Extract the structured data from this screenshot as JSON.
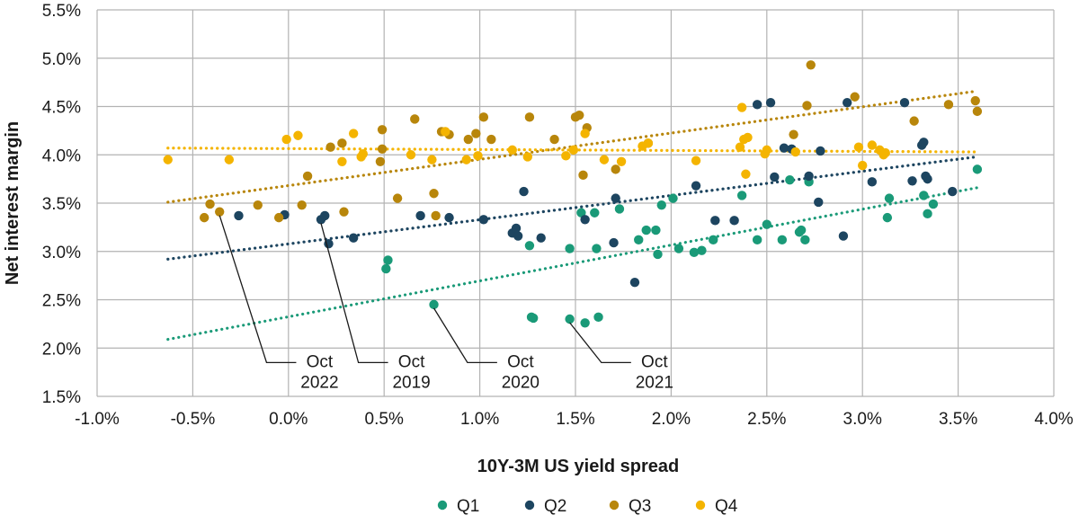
{
  "chart_data": {
    "type": "scatter",
    "xlabel": "10Y-3M US yield spread",
    "ylabel": "Net interest margin",
    "xlim": [
      -0.01,
      0.04
    ],
    "ylim": [
      0.015,
      0.055
    ],
    "x_ticks": [
      "-1.0%",
      "-0.5%",
      "0.0%",
      "0.5%",
      "1.0%",
      "1.5%",
      "2.0%",
      "2.5%",
      "3.0%",
      "3.5%",
      "4.0%"
    ],
    "y_ticks": [
      "1.5%",
      "2.0%",
      "2.5%",
      "3.0%",
      "3.5%",
      "4.0%",
      "4.5%",
      "5.0%",
      "5.5%"
    ],
    "grid": true,
    "legend_position": "bottom",
    "colors": {
      "Q1": "#1a9a78",
      "Q2": "#1d4560",
      "Q3": "#b8860b",
      "Q4": "#f4b400"
    },
    "series": [
      {
        "name": "Q1",
        "points": [
          [
            0.0051,
            0.0282
          ],
          [
            0.0052,
            0.0291
          ],
          [
            0.0076,
            0.0245
          ],
          [
            0.0126,
            0.0306
          ],
          [
            0.0127,
            0.0232
          ],
          [
            0.0128,
            0.0231
          ],
          [
            0.0147,
            0.0303
          ],
          [
            0.0147,
            0.023
          ],
          [
            0.0153,
            0.034
          ],
          [
            0.0155,
            0.0226
          ],
          [
            0.016,
            0.034
          ],
          [
            0.0161,
            0.0303
          ],
          [
            0.0162,
            0.0232
          ],
          [
            0.0173,
            0.0344
          ],
          [
            0.0183,
            0.0312
          ],
          [
            0.0187,
            0.0322
          ],
          [
            0.0192,
            0.0322
          ],
          [
            0.0193,
            0.0297
          ],
          [
            0.0195,
            0.0348
          ],
          [
            0.0201,
            0.0355
          ],
          [
            0.0204,
            0.0303
          ],
          [
            0.0212,
            0.0299
          ],
          [
            0.0216,
            0.0301
          ],
          [
            0.0222,
            0.0312
          ],
          [
            0.0237,
            0.0358
          ],
          [
            0.0245,
            0.0312
          ],
          [
            0.025,
            0.0328
          ],
          [
            0.0258,
            0.0312
          ],
          [
            0.0262,
            0.0374
          ],
          [
            0.0267,
            0.032
          ],
          [
            0.0268,
            0.0322
          ],
          [
            0.027,
            0.0312
          ],
          [
            0.0272,
            0.0372
          ],
          [
            0.0313,
            0.0335
          ],
          [
            0.0314,
            0.0355
          ],
          [
            0.0332,
            0.0358
          ],
          [
            0.0334,
            0.0339
          ],
          [
            0.0337,
            0.0349
          ],
          [
            0.036,
            0.0385
          ]
        ],
        "trend": [
          [
            -0.0063,
            0.0209
          ],
          [
            0.036,
            0.0366
          ]
        ]
      },
      {
        "name": "Q2",
        "points": [
          [
            -0.0026,
            0.0337
          ],
          [
            -0.0002,
            0.0338
          ],
          [
            0.0017,
            0.0333
          ],
          [
            0.0019,
            0.0337
          ],
          [
            0.0021,
            0.0308
          ],
          [
            0.0034,
            0.0314
          ],
          [
            0.0069,
            0.0337
          ],
          [
            0.0084,
            0.0335
          ],
          [
            0.0102,
            0.0333
          ],
          [
            0.0117,
            0.0319
          ],
          [
            0.0119,
            0.0324
          ],
          [
            0.012,
            0.0316
          ],
          [
            0.0123,
            0.0362
          ],
          [
            0.0132,
            0.0314
          ],
          [
            0.0155,
            0.0333
          ],
          [
            0.017,
            0.0309
          ],
          [
            0.0171,
            0.0355
          ],
          [
            0.0181,
            0.0268
          ],
          [
            0.0213,
            0.0368
          ],
          [
            0.0223,
            0.0332
          ],
          [
            0.0233,
            0.0332
          ],
          [
            0.0245,
            0.0452
          ],
          [
            0.0252,
            0.0454
          ],
          [
            0.0254,
            0.0377
          ],
          [
            0.0259,
            0.0407
          ],
          [
            0.0263,
            0.0406
          ],
          [
            0.0272,
            0.0378
          ],
          [
            0.0277,
            0.0351
          ],
          [
            0.0278,
            0.0404
          ],
          [
            0.029,
            0.0316
          ],
          [
            0.0292,
            0.0454
          ],
          [
            0.0305,
            0.0372
          ],
          [
            0.0322,
            0.0454
          ],
          [
            0.0326,
            0.0373
          ],
          [
            0.0331,
            0.041
          ],
          [
            0.0332,
            0.0413
          ],
          [
            0.0333,
            0.0378
          ],
          [
            0.0334,
            0.0375
          ],
          [
            0.0347,
            0.0362
          ]
        ],
        "trend": [
          [
            -0.0063,
            0.0292
          ],
          [
            0.036,
            0.0398
          ]
        ]
      },
      {
        "name": "Q3",
        "points": [
          [
            -0.0044,
            0.0335
          ],
          [
            -0.0041,
            0.0349
          ],
          [
            -0.0036,
            0.0341
          ],
          [
            -0.0016,
            0.0348
          ],
          [
            -0.0005,
            0.0335
          ],
          [
            0.0007,
            0.0348
          ],
          [
            0.001,
            0.0378
          ],
          [
            0.0022,
            0.0408
          ],
          [
            0.0028,
            0.0412
          ],
          [
            0.0029,
            0.0341
          ],
          [
            0.0048,
            0.0393
          ],
          [
            0.0049,
            0.0406
          ],
          [
            0.0049,
            0.0426
          ],
          [
            0.0057,
            0.0355
          ],
          [
            0.0066,
            0.0437
          ],
          [
            0.0076,
            0.036
          ],
          [
            0.0077,
            0.0337
          ],
          [
            0.008,
            0.0424
          ],
          [
            0.0084,
            0.0421
          ],
          [
            0.0094,
            0.0416
          ],
          [
            0.0098,
            0.0422
          ],
          [
            0.0102,
            0.0439
          ],
          [
            0.0106,
            0.0416
          ],
          [
            0.0126,
            0.0439
          ],
          [
            0.0139,
            0.0416
          ],
          [
            0.015,
            0.0439
          ],
          [
            0.0152,
            0.0441
          ],
          [
            0.0154,
            0.0379
          ],
          [
            0.0156,
            0.0428
          ],
          [
            0.0171,
            0.0385
          ],
          [
            0.0188,
            0.0412
          ],
          [
            0.0264,
            0.0421
          ],
          [
            0.0273,
            0.0493
          ],
          [
            0.0271,
            0.0451
          ],
          [
            0.0296,
            0.046
          ],
          [
            0.0327,
            0.0435
          ],
          [
            0.0345,
            0.0452
          ],
          [
            0.0359,
            0.0456
          ],
          [
            0.036,
            0.0445
          ]
        ],
        "trend": [
          [
            -0.0063,
            0.0351
          ],
          [
            0.036,
            0.0466
          ]
        ]
      },
      {
        "name": "Q4",
        "points": [
          [
            -0.0063,
            0.0395
          ],
          [
            -0.0031,
            0.0395
          ],
          [
            -0.0001,
            0.0416
          ],
          [
            0.0005,
            0.042
          ],
          [
            0.0028,
            0.0393
          ],
          [
            0.0034,
            0.0422
          ],
          [
            0.0038,
            0.0398
          ],
          [
            0.0039,
            0.0401
          ],
          [
            0.0064,
            0.04
          ],
          [
            0.0075,
            0.0395
          ],
          [
            0.0082,
            0.0424
          ],
          [
            0.0093,
            0.0395
          ],
          [
            0.0099,
            0.0399
          ],
          [
            0.0117,
            0.0405
          ],
          [
            0.0125,
            0.0398
          ],
          [
            0.0145,
            0.0399
          ],
          [
            0.0149,
            0.0405
          ],
          [
            0.0155,
            0.0422
          ],
          [
            0.0165,
            0.0395
          ],
          [
            0.0174,
            0.0393
          ],
          [
            0.0185,
            0.0409
          ],
          [
            0.0188,
            0.0412
          ],
          [
            0.0213,
            0.0394
          ],
          [
            0.0236,
            0.0408
          ],
          [
            0.0238,
            0.0416
          ],
          [
            0.0237,
            0.0449
          ],
          [
            0.0239,
            0.038
          ],
          [
            0.024,
            0.0418
          ],
          [
            0.0249,
            0.0401
          ],
          [
            0.025,
            0.0405
          ],
          [
            0.0265,
            0.0403
          ],
          [
            0.0298,
            0.0408
          ],
          [
            0.03,
            0.0389
          ],
          [
            0.0305,
            0.041
          ],
          [
            0.0309,
            0.0405
          ],
          [
            0.0311,
            0.04
          ],
          [
            0.0312,
            0.0402
          ]
        ],
        "trend": [
          [
            -0.0063,
            0.0407
          ],
          [
            0.036,
            0.0403
          ]
        ]
      }
    ],
    "annotations": [
      {
        "lines": [
          "Oct",
          "2022"
        ],
        "point": [
          -0.0036,
          0.0341
        ],
        "label_x": 0.0005,
        "label_y": 0.0185
      },
      {
        "lines": [
          "Oct",
          "2019"
        ],
        "point": [
          0.0017,
          0.0333
        ],
        "label_x": 0.0053,
        "label_y": 0.0185
      },
      {
        "lines": [
          "Oct",
          "2020"
        ],
        "point": [
          0.0076,
          0.0245
        ],
        "label_x": 0.011,
        "label_y": 0.0185
      },
      {
        "lines": [
          "Oct",
          "2021"
        ],
        "point": [
          0.0147,
          0.023
        ],
        "label_x": 0.018,
        "label_y": 0.0185
      }
    ]
  }
}
